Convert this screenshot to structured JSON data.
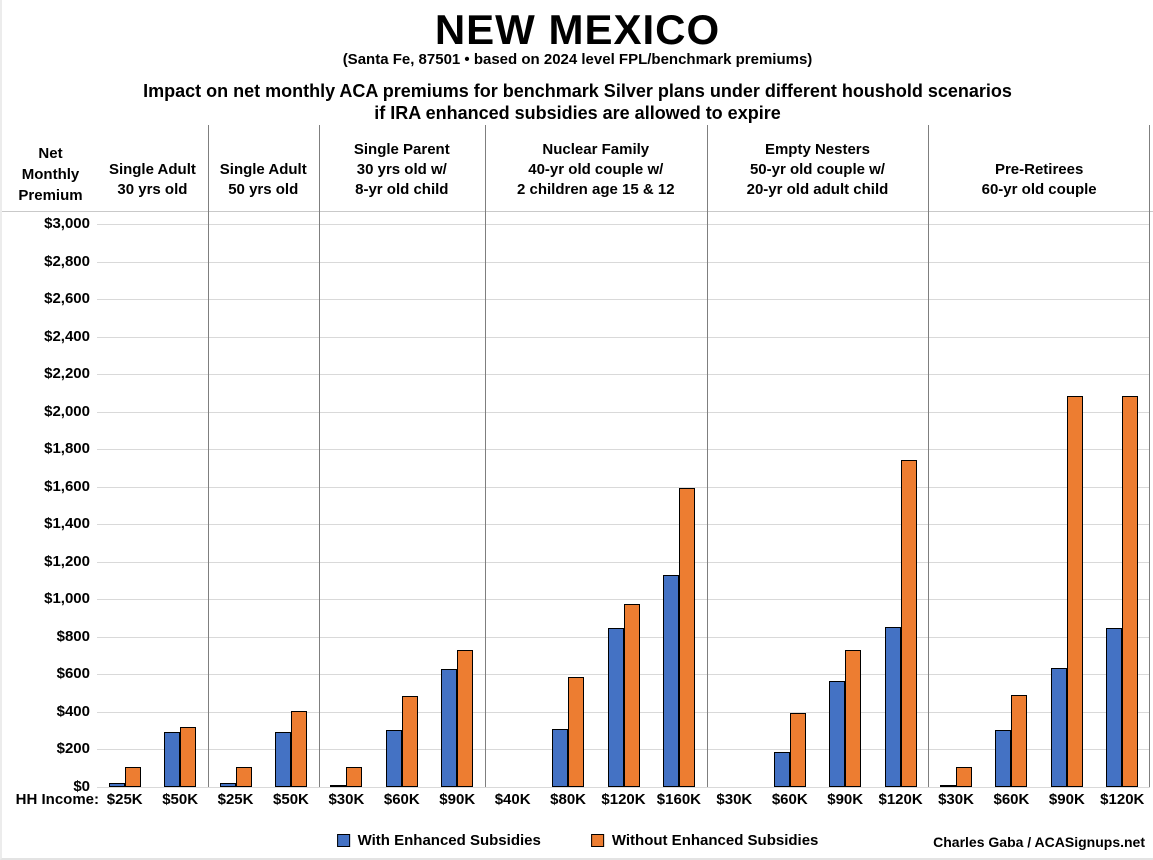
{
  "header": {
    "title": "NEW MEXICO",
    "subtitle": "(Santa Fe, 87501 • based on 2024 level FPL/benchmark premiums)",
    "heading_line1": "Impact on net monthly ACA premiums for benchmark Silver plans under different houshold scenarios",
    "heading_line2": "if IRA enhanced subsidies are allowed to expire"
  },
  "axis": {
    "y_title_lines": [
      "Net",
      "Monthly",
      "Premium"
    ],
    "x_prefix": "HH Income:",
    "y_ticks": [
      "$3,000",
      "$2,800",
      "$2,600",
      "$2,400",
      "$2,200",
      "$2,000",
      "$1,800",
      "$1,600",
      "$1,400",
      "$1,200",
      "$1,000",
      "$800",
      "$600",
      "$400",
      "$200",
      "$0"
    ]
  },
  "legend": {
    "with_label": "With Enhanced Subsidies",
    "without_label": "Without Enhanced Subsidies"
  },
  "credit": "Charles Gaba / ACASignups.net",
  "colors": {
    "with_enhanced": "#4472C4",
    "without_enhanced": "#ED7D31",
    "bar_border": "#000000",
    "gridline": "#d9d9d9",
    "divider": "#7f7f7f"
  },
  "chart_data": {
    "type": "bar",
    "title": "Impact on net monthly ACA premiums for benchmark Silver plans under different houshold scenarios if IRA enhanced subsidies are allowed to expire",
    "ylabel": "Net Monthly Premium",
    "ylim": [
      0,
      3000
    ],
    "y_tick_step": 200,
    "grid": true,
    "legend_position": "bottom",
    "series_names": [
      "With Enhanced Subsidies",
      "Without Enhanced Subsidies"
    ],
    "groups": [
      {
        "title_lines": [
          "Single Adult",
          "30 yrs old"
        ],
        "categories": [
          "$25K",
          "$50K"
        ],
        "with_enhanced": [
          20,
          295
        ],
        "without_enhanced": [
          105,
          320
        ]
      },
      {
        "title_lines": [
          "Single Adult",
          "50 yrs old"
        ],
        "categories": [
          "$25K",
          "$50K"
        ],
        "with_enhanced": [
          20,
          295
        ],
        "without_enhanced": [
          105,
          405
        ]
      },
      {
        "title_lines": [
          "Single Parent",
          "30 yrs old w/",
          "8-yr old child"
        ],
        "categories": [
          "$30K",
          "$60K",
          "$90K"
        ],
        "with_enhanced": [
          5,
          305,
          630
        ],
        "without_enhanced": [
          105,
          485,
          730
        ]
      },
      {
        "title_lines": [
          "Nuclear Family",
          "40-yr old couple w/",
          "2 children age 15 & 12"
        ],
        "categories": [
          "$40K",
          "$80K",
          "$120K",
          "$160K"
        ],
        "with_enhanced": [
          0,
          310,
          845,
          1130
        ],
        "without_enhanced": [
          0,
          585,
          975,
          1595
        ]
      },
      {
        "title_lines": [
          "Empty Nesters",
          "50-yr old couple w/",
          "20-yr old adult child"
        ],
        "categories": [
          "$30K",
          "$60K",
          "$90K",
          "$120K"
        ],
        "with_enhanced": [
          0,
          185,
          565,
          850
        ],
        "without_enhanced": [
          0,
          395,
          730,
          1740
        ]
      },
      {
        "title_lines": [
          "Pre-Retirees",
          "60-yr old couple"
        ],
        "categories": [
          "$30K",
          "$60K",
          "$90K",
          "$120K"
        ],
        "with_enhanced": [
          5,
          305,
          635,
          845
        ],
        "without_enhanced": [
          105,
          490,
          2085,
          2085
        ]
      }
    ]
  }
}
